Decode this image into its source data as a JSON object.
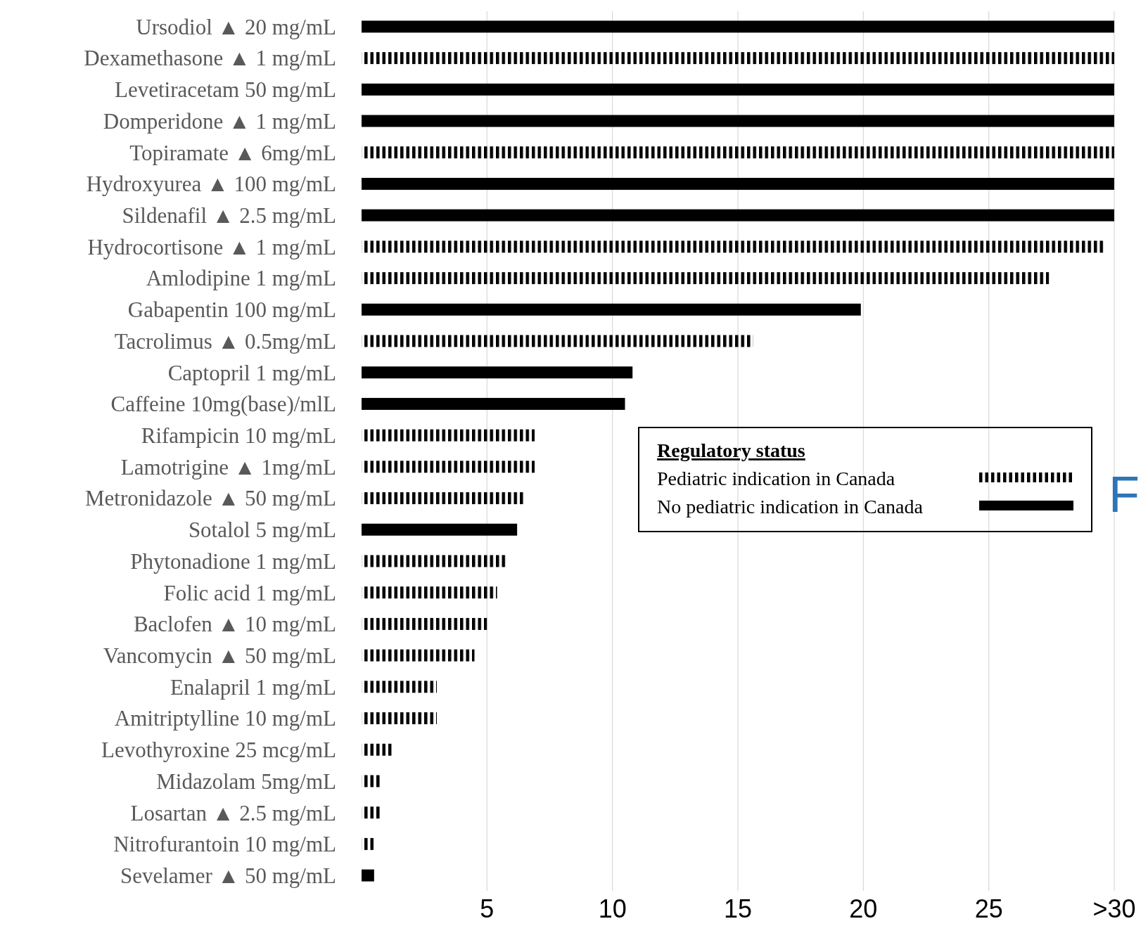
{
  "chart_data": {
    "type": "bar",
    "orientation": "horizontal",
    "legend_title": "Regulatory status",
    "legend": "right",
    "grid": "x",
    "categories": [
      "Ursodiol ▲ 20 mg/mL",
      "Dexamethasone ▲ 1 mg/mL",
      "Levetiracetam 50 mg/mL",
      "Domperidone ▲ 1 mg/mL",
      "Topiramate ▲ 6mg/mL",
      "Hydroxyurea ▲ 100 mg/mL",
      "Sildenafil ▲ 2.5 mg/mL",
      "Hydrocortisone ▲ 1 mg/mL",
      "Amlodipine 1 mg/mL",
      "Gabapentin 100 mg/mL",
      "Tacrolimus ▲ 0.5mg/mL",
      "Captopril 1 mg/mL",
      "Caffeine 10mg(base)/mlL",
      "Rifampicin 10 mg/mL",
      "Lamotrigine ▲ 1mg/mL",
      "Metronidazole ▲ 50 mg/mL",
      "Sotalol 5 mg/mL",
      "Phytonadione 1 mg/mL",
      "Folic acid 1 mg/mL",
      "Baclofen ▲ 10 mg/mL",
      "Vancomycin ▲ 50 mg/mL",
      "Enalapril 1 mg/mL",
      "Amitriptylline 10 mg/mL",
      "Levothyroxine 25 mcg/mL",
      "Midazolam 5mg/mL",
      "Losartan ▲ 2.5 mg/mL",
      "Nitrofurantoin 10 mg/mL",
      "Sevelamer ▲ 50 mg/mL"
    ],
    "series": [
      {
        "name": "Pediatric indication in Canada",
        "color": "#000000",
        "line_style": "dotted",
        "values": [
          null,
          30,
          null,
          null,
          30,
          null,
          null,
          29.6,
          27.4,
          null,
          15.6,
          null,
          null,
          6.9,
          6.9,
          6.5,
          null,
          5.8,
          5.4,
          5.0,
          4.5,
          3.0,
          3.0,
          1.2,
          0.8,
          0.8,
          0.5,
          null
        ]
      },
      {
        "name": "No pediatric indication in Canada",
        "color": "#000000",
        "line_style": "solid",
        "values": [
          30,
          null,
          30,
          30,
          null,
          30,
          30,
          null,
          null,
          19.9,
          null,
          10.8,
          10.5,
          null,
          null,
          null,
          6.2,
          null,
          null,
          null,
          null,
          null,
          null,
          null,
          null,
          null,
          null,
          0.5
        ]
      }
    ],
    "xlim": [
      0,
      30
    ],
    "xticks": [
      5,
      10,
      15,
      20,
      25,
      {
        "value": 30,
        "label": ">30"
      }
    ],
    "annotations": [
      "F"
    ]
  }
}
